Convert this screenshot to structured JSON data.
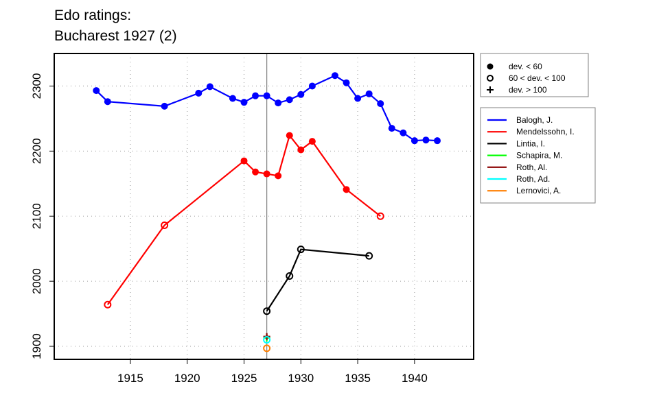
{
  "chart_data": {
    "type": "line",
    "title_lines": [
      "Edo ratings:",
      "Bucharest 1927 (2)"
    ],
    "xlabel": "",
    "ylabel": "",
    "xlim": [
      1908.3,
      1945.2
    ],
    "ylim": [
      1880,
      2350
    ],
    "x_ticks": [
      1915,
      1920,
      1925,
      1930,
      1935,
      1940
    ],
    "y_ticks": [
      1900,
      2000,
      2100,
      2200,
      2300
    ],
    "grid": "dotted",
    "marker_year": 1927,
    "deviation_legend": [
      {
        "marker": "filled-circle",
        "label": "dev. < 60"
      },
      {
        "marker": "open-circle",
        "label": "60 < dev. < 100"
      },
      {
        "marker": "plus",
        "label": "dev. > 100"
      }
    ],
    "series": [
      {
        "name": "Balogh, J.",
        "color": "#0000ff",
        "points": [
          {
            "x": 1912,
            "y": 2293,
            "m": "filled"
          },
          {
            "x": 1913,
            "y": 2276,
            "m": "filled"
          },
          {
            "x": 1918,
            "y": 2269,
            "m": "filled"
          },
          {
            "x": 1921,
            "y": 2289,
            "m": "filled"
          },
          {
            "x": 1922,
            "y": 2299,
            "m": "filled"
          },
          {
            "x": 1924,
            "y": 2281,
            "m": "filled"
          },
          {
            "x": 1925,
            "y": 2275,
            "m": "filled"
          },
          {
            "x": 1926,
            "y": 2285,
            "m": "filled"
          },
          {
            "x": 1927,
            "y": 2285,
            "m": "filled"
          },
          {
            "x": 1928,
            "y": 2274,
            "m": "filled"
          },
          {
            "x": 1929,
            "y": 2279,
            "m": "filled"
          },
          {
            "x": 1930,
            "y": 2287,
            "m": "filled"
          },
          {
            "x": 1931,
            "y": 2300,
            "m": "filled"
          },
          {
            "x": 1933,
            "y": 2316,
            "m": "filled"
          },
          {
            "x": 1934,
            "y": 2305,
            "m": "filled"
          },
          {
            "x": 1935,
            "y": 2281,
            "m": "filled"
          },
          {
            "x": 1936,
            "y": 2288,
            "m": "filled"
          },
          {
            "x": 1937,
            "y": 2273,
            "m": "filled"
          },
          {
            "x": 1938,
            "y": 2235,
            "m": "filled"
          },
          {
            "x": 1939,
            "y": 2228,
            "m": "filled"
          },
          {
            "x": 1940,
            "y": 2216,
            "m": "filled"
          },
          {
            "x": 1941,
            "y": 2217,
            "m": "filled"
          },
          {
            "x": 1942,
            "y": 2216,
            "m": "filled"
          }
        ]
      },
      {
        "name": "Mendelssohn, I.",
        "color": "#ff0000",
        "points": [
          {
            "x": 1913,
            "y": 1964,
            "m": "open"
          },
          {
            "x": 1918,
            "y": 2086,
            "m": "open"
          },
          {
            "x": 1925,
            "y": 2185,
            "m": "filled"
          },
          {
            "x": 1926,
            "y": 2168,
            "m": "filled"
          },
          {
            "x": 1927,
            "y": 2165,
            "m": "filled"
          },
          {
            "x": 1928,
            "y": 2162,
            "m": "filled"
          },
          {
            "x": 1929,
            "y": 2224,
            "m": "filled"
          },
          {
            "x": 1930,
            "y": 2202,
            "m": "filled"
          },
          {
            "x": 1931,
            "y": 2215,
            "m": "filled"
          },
          {
            "x": 1934,
            "y": 2141,
            "m": "filled"
          },
          {
            "x": 1937,
            "y": 2100,
            "m": "open"
          }
        ]
      },
      {
        "name": "Lintia, I.",
        "color": "#000000",
        "points": [
          {
            "x": 1927,
            "y": 1954,
            "m": "open"
          },
          {
            "x": 1929,
            "y": 2008,
            "m": "open"
          },
          {
            "x": 1930,
            "y": 2049,
            "m": "open"
          },
          {
            "x": 1936,
            "y": 2039,
            "m": "open"
          }
        ]
      },
      {
        "name": "Schapira, M.",
        "color": "#00ff00",
        "points": [
          {
            "x": 1927,
            "y": 1913,
            "m": "plus"
          }
        ]
      },
      {
        "name": "Roth, Al.",
        "color": "#8b0000",
        "points": [
          {
            "x": 1927,
            "y": 1915,
            "m": "plus"
          }
        ]
      },
      {
        "name": "Roth, Ad.",
        "color": "#00ffff",
        "points": [
          {
            "x": 1927,
            "y": 1910,
            "m": "open"
          }
        ]
      },
      {
        "name": "Lernovici, A.",
        "color": "#ff7f00",
        "points": [
          {
            "x": 1927,
            "y": 1897,
            "m": "open"
          }
        ]
      }
    ]
  }
}
